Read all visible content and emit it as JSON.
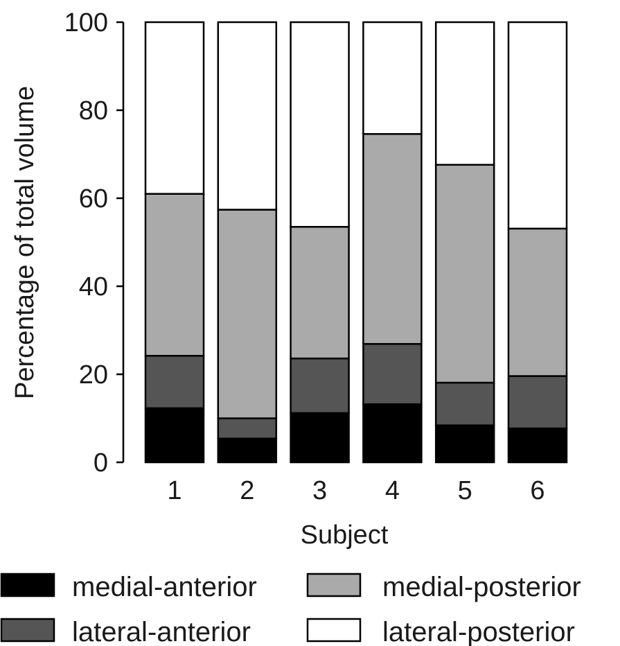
{
  "chart_data": {
    "type": "bar",
    "stacked": true,
    "categories": [
      "1",
      "2",
      "3",
      "4",
      "5",
      "6"
    ],
    "series": [
      {
        "name": "medial-anterior",
        "color": "#000000",
        "values": [
          12.3,
          5.4,
          11.2,
          13.2,
          8.4,
          7.7
        ]
      },
      {
        "name": "lateral-anterior",
        "color": "#555555",
        "values": [
          11.9,
          4.6,
          12.4,
          13.7,
          9.7,
          11.9
        ]
      },
      {
        "name": "medial-posterior",
        "color": "#aaaaaa",
        "values": [
          36.8,
          47.4,
          29.9,
          47.7,
          49.5,
          33.5
        ]
      },
      {
        "name": "lateral-posterior",
        "color": "#ffffff",
        "values": [
          39.0,
          42.6,
          46.5,
          25.4,
          32.4,
          46.9
        ]
      }
    ],
    "xlabel": "Subject",
    "ylabel": "Percentage of total volume",
    "ylim": [
      0,
      100
    ],
    "yticks": [
      0,
      20,
      40,
      60,
      80,
      100
    ],
    "grid": false,
    "legend_position": "bottom"
  }
}
